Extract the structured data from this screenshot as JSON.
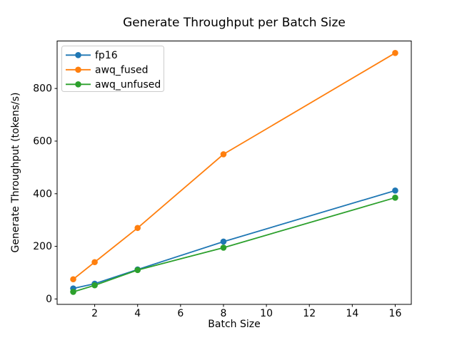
{
  "figure": {
    "background": "#ffffff",
    "frame_color": "#000000",
    "tick_color": "#000000",
    "legend_border_color": "#cccccc",
    "legend_background": "#ffffff"
  },
  "chart_data": {
    "type": "line",
    "title": "Generate Throughput per Batch Size",
    "xlabel": "Batch Size",
    "ylabel": "Generate Throughput (tokens/s)",
    "x": [
      1,
      2,
      4,
      8,
      16
    ],
    "series": [
      {
        "name": "fp16",
        "color": "#1f77b4",
        "values": [
          40,
          58,
          112,
          218,
          412
        ]
      },
      {
        "name": "awq_fused",
        "color": "#ff7f0e",
        "values": [
          75,
          140,
          270,
          550,
          935
        ]
      },
      {
        "name": "awq_unfused",
        "color": "#2ca02c",
        "values": [
          27,
          52,
          110,
          195,
          385
        ]
      }
    ],
    "marker": "o",
    "xticks": [
      2,
      4,
      6,
      8,
      10,
      12,
      14,
      16
    ],
    "yticks": [
      0,
      200,
      400,
      600,
      800
    ],
    "xlim": [
      0.25,
      16.75
    ],
    "ylim": [
      -20.5,
      980.5
    ],
    "grid": false,
    "legend_position": "upper left"
  }
}
